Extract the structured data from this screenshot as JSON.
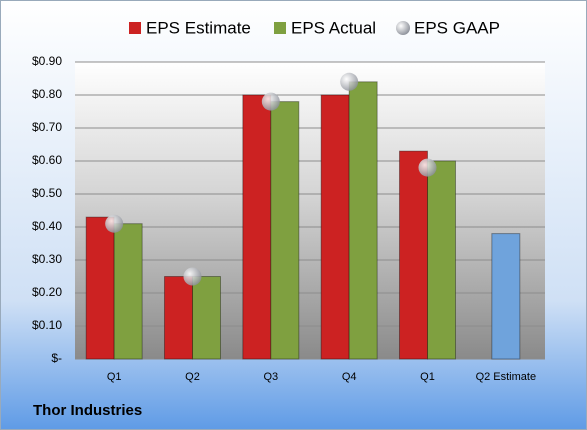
{
  "chart_data": {
    "type": "bar",
    "title": "Thor Industries",
    "categories": [
      "Q1",
      "Q2",
      "Q3",
      "Q4",
      "Q1",
      "Q2 Estimate"
    ],
    "series": [
      {
        "name": "EPS Estimate",
        "color": "#cc2222",
        "colors": [
          "#cc2222",
          "#cc2222",
          "#cc2222",
          "#cc2222",
          "#cc2222",
          "#6fa3dc"
        ],
        "values": [
          0.43,
          0.25,
          0.8,
          0.8,
          0.63,
          0.38
        ]
      },
      {
        "name": "EPS Actual",
        "color": "#7fa040",
        "values": [
          0.41,
          0.25,
          0.78,
          0.84,
          0.6,
          null
        ]
      },
      {
        "name": "EPS GAAP",
        "type": "scatter",
        "color": "#b8bcc4",
        "values": [
          0.41,
          0.25,
          0.78,
          0.84,
          0.58,
          null
        ]
      }
    ],
    "ylim": [
      0,
      0.9
    ],
    "yticks": [
      {
        "value": 0,
        "label": "$-"
      },
      {
        "value": 0.1,
        "label": "$0.10"
      },
      {
        "value": 0.2,
        "label": "$0.20"
      },
      {
        "value": 0.3,
        "label": "$0.30"
      },
      {
        "value": 0.4,
        "label": "$0.40"
      },
      {
        "value": 0.5,
        "label": "$0.50"
      },
      {
        "value": 0.6,
        "label": "$0.60"
      },
      {
        "value": 0.7,
        "label": "$0.70"
      },
      {
        "value": 0.8,
        "label": "$0.80"
      },
      {
        "value": 0.9,
        "label": "$0.90"
      }
    ],
    "grid": true
  }
}
